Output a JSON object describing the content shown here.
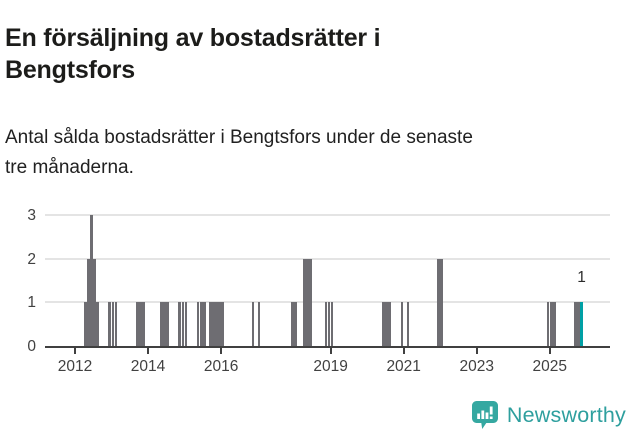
{
  "header": {
    "title": "En försäljning av bostadsrätter i Bengtsfors",
    "title_lines": [
      "En försäljning av bostadsrätter i",
      "Bengtsfors"
    ],
    "subtitle": "Antal sålda bostadsrätter i Bengtsfors under de senaste tre månaderna.",
    "subtitle_lines": [
      "Antal sålda bostadsrätter i Bengtsfors under de senaste",
      "tre månaderna."
    ]
  },
  "colors": {
    "bar": "#6e6d72",
    "highlight": "#00a0a5",
    "grid": "#e4e4e4",
    "axis": "#404040",
    "brand": "#2e9f9e"
  },
  "chart_data": {
    "type": "bar",
    "title": "En försäljning av bostadsrätter i Bengtsfors",
    "ylabel": "",
    "xlabel": "",
    "y_axis": {
      "min": 0,
      "max": 3,
      "ticks": [
        0,
        1,
        2,
        3
      ]
    },
    "x_axis": {
      "tick_years": [
        2012,
        2014,
        2016,
        2019,
        2021,
        2023,
        2025
      ],
      "start_month": "2011-03",
      "end_month": "2026-09"
    },
    "grid": true,
    "points": [
      {
        "month": "2012-04",
        "value": 1
      },
      {
        "month": "2012-05",
        "value": 2
      },
      {
        "month": "2012-06",
        "value": 3
      },
      {
        "month": "2012-07",
        "value": 2
      },
      {
        "month": "2012-08",
        "value": 1
      },
      {
        "month": "2012-12",
        "value": 1
      },
      {
        "month": "2013-01",
        "value": 1
      },
      {
        "month": "2013-02",
        "value": 1
      },
      {
        "month": "2013-09",
        "value": 1
      },
      {
        "month": "2013-10",
        "value": 1
      },
      {
        "month": "2013-11",
        "value": 1
      },
      {
        "month": "2014-05",
        "value": 1
      },
      {
        "month": "2014-06",
        "value": 1
      },
      {
        "month": "2014-07",
        "value": 1
      },
      {
        "month": "2014-11",
        "value": 1
      },
      {
        "month": "2014-12",
        "value": 1
      },
      {
        "month": "2015-01",
        "value": 1
      },
      {
        "month": "2015-05",
        "value": 1
      },
      {
        "month": "2015-06",
        "value": 1
      },
      {
        "month": "2015-07",
        "value": 1
      },
      {
        "month": "2015-09",
        "value": 1
      },
      {
        "month": "2015-10",
        "value": 1
      },
      {
        "month": "2015-11",
        "value": 1
      },
      {
        "month": "2015-12",
        "value": 1
      },
      {
        "month": "2016-01",
        "value": 1
      },
      {
        "month": "2016-11",
        "value": 1
      },
      {
        "month": "2017-01",
        "value": 1
      },
      {
        "month": "2017-12",
        "value": 1
      },
      {
        "month": "2018-01",
        "value": 1
      },
      {
        "month": "2018-04",
        "value": 2
      },
      {
        "month": "2018-05",
        "value": 2
      },
      {
        "month": "2018-06",
        "value": 2
      },
      {
        "month": "2018-11",
        "value": 1
      },
      {
        "month": "2018-12",
        "value": 1
      },
      {
        "month": "2019-01",
        "value": 1
      },
      {
        "month": "2020-06",
        "value": 1
      },
      {
        "month": "2020-07",
        "value": 1
      },
      {
        "month": "2020-08",
        "value": 1
      },
      {
        "month": "2020-12",
        "value": 1
      },
      {
        "month": "2021-02",
        "value": 1
      },
      {
        "month": "2021-12",
        "value": 2
      },
      {
        "month": "2022-01",
        "value": 2
      },
      {
        "month": "2024-12",
        "value": 1
      },
      {
        "month": "2025-01",
        "value": 1
      },
      {
        "month": "2025-02",
        "value": 1
      },
      {
        "month": "2025-09",
        "value": 1
      },
      {
        "month": "2025-10",
        "value": 1
      }
    ],
    "highlight_point": {
      "month": "2025-11",
      "value": 1,
      "label": "1"
    },
    "legend": false
  },
  "footer": {
    "brand": "Newsworthy"
  }
}
